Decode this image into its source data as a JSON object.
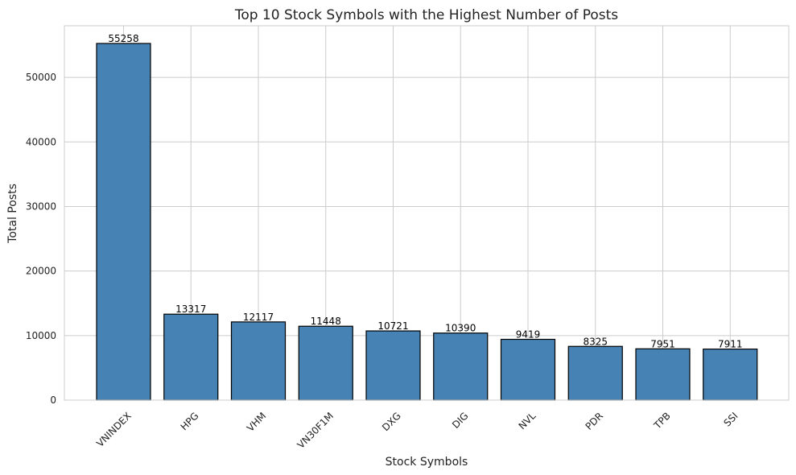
{
  "chart_data": {
    "type": "bar",
    "title": "Top 10 Stock Symbols with the Highest Number of Posts",
    "xlabel": "Stock Symbols",
    "ylabel": "Total Posts",
    "categories": [
      "VNINDEX",
      "HPG",
      "VHM",
      "VN30F1M",
      "DXG",
      "DIG",
      "NVL",
      "PDR",
      "TPB",
      "SSI"
    ],
    "values": [
      55258,
      13317,
      12117,
      11448,
      10721,
      10390,
      9419,
      8325,
      7951,
      7911
    ],
    "value_labels": [
      "55258",
      "13317",
      "12117",
      "11448",
      "10721",
      "10390",
      "9419",
      "8325",
      "7951",
      "7911"
    ],
    "ylim": [
      0,
      58000
    ],
    "yticks": [
      0,
      10000,
      20000,
      30000,
      40000,
      50000
    ],
    "ytick_labels": [
      "0",
      "10000",
      "20000",
      "30000",
      "40000",
      "50000"
    ],
    "grid": true,
    "bar_color": "#4682b4",
    "edge_color": "#000000"
  }
}
